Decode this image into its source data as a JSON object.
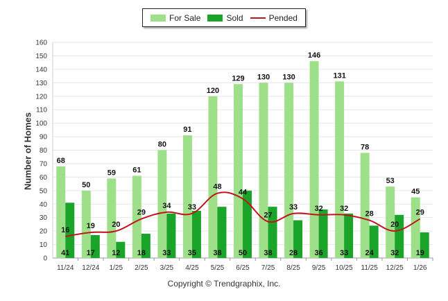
{
  "legend": {
    "for_sale": "For Sale",
    "sold": "Sold",
    "pended": "Pended"
  },
  "colors": {
    "for_sale": "#9ee08a",
    "sold": "#1aa52a",
    "pended": "#c0161b",
    "grid": "#e6e6e6"
  },
  "footer": {
    "copyright": "Copyright © Trendgraphix, Inc."
  },
  "chart_data": {
    "type": "bar",
    "ylabel": "Number of Homes",
    "ylim": [
      0,
      160
    ],
    "yticks": [
      0,
      10,
      20,
      30,
      40,
      50,
      60,
      70,
      80,
      90,
      100,
      110,
      120,
      130,
      140,
      150,
      160
    ],
    "categories": [
      "11/24",
      "12/24",
      "1/25",
      "2/25",
      "3/25",
      "4/25",
      "5/25",
      "6/25",
      "7/25",
      "8/25",
      "9/25",
      "10/25",
      "11/25",
      "12/25",
      "1/26"
    ],
    "series": [
      {
        "name": "For Sale",
        "type": "bar",
        "values": [
          68,
          50,
          59,
          61,
          80,
          91,
          120,
          129,
          130,
          130,
          146,
          131,
          78,
          53,
          45
        ]
      },
      {
        "name": "Sold",
        "type": "bar",
        "values": [
          41,
          17,
          12,
          18,
          33,
          35,
          38,
          50,
          38,
          28,
          36,
          33,
          24,
          32,
          19
        ]
      },
      {
        "name": "Pended",
        "type": "line",
        "values": [
          16,
          19,
          20,
          29,
          34,
          33,
          48,
          44,
          27,
          33,
          32,
          32,
          28,
          20,
          29
        ]
      }
    ],
    "grid": true,
    "legend_position": "top-center"
  }
}
